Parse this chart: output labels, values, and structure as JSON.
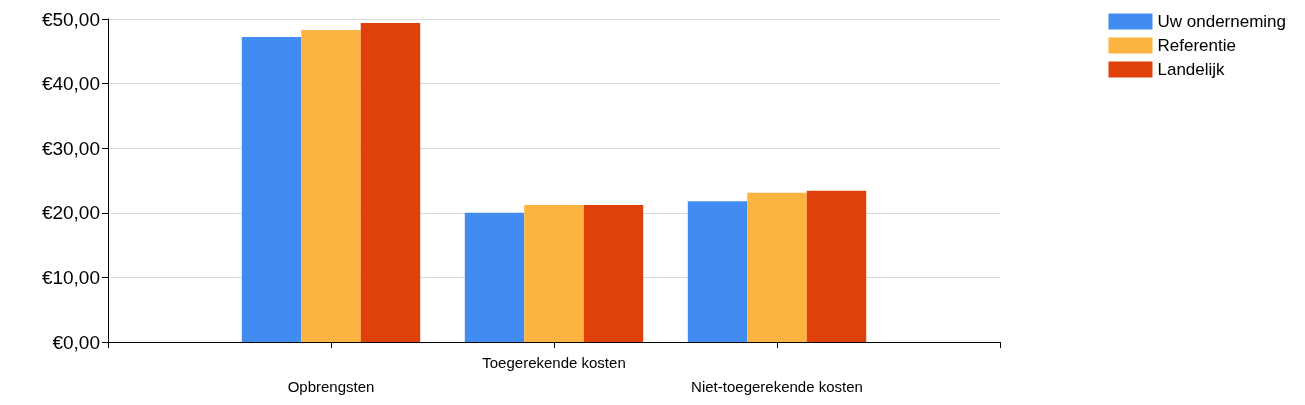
{
  "chart_data": {
    "type": "bar",
    "categories": [
      null,
      "Opbrengsten",
      "Toegerekende kosten",
      "Niet-toegerekende kosten",
      null
    ],
    "series": [
      {
        "name": "Uw onderneming",
        "color": "#418cf0",
        "values": [
          null,
          47.2,
          20.0,
          21.8,
          null
        ]
      },
      {
        "name": "Referentie",
        "color": "#fcb441",
        "values": [
          null,
          48.3,
          21.2,
          23.1,
          null
        ]
      },
      {
        "name": "Landelijk",
        "color": "#e0400a",
        "values": [
          null,
          49.4,
          21.2,
          23.4,
          null
        ]
      }
    ],
    "ylim": [
      0,
      50
    ],
    "yticks": [
      {
        "value": 0,
        "label": "€0,00"
      },
      {
        "value": 10,
        "label": "€10,00"
      },
      {
        "value": 20,
        "label": "€20,00"
      },
      {
        "value": 30,
        "label": "€30,00"
      },
      {
        "value": 40,
        "label": "€40,00"
      },
      {
        "value": 50,
        "label": "€50,00"
      }
    ],
    "grid": "y",
    "legend": "top right"
  }
}
